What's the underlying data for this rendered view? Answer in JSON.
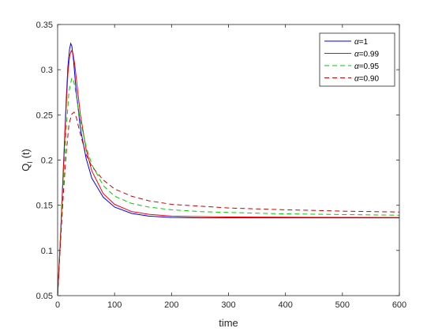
{
  "chart_data": {
    "type": "line",
    "xlabel": "time",
    "ylabel_main": "Q",
    "ylabel_sub": "I",
    "ylabel_tail": " (t)",
    "xlim": [
      0,
      600
    ],
    "ylim": [
      0.05,
      0.35
    ],
    "x_ticks": [
      0,
      100,
      200,
      300,
      400,
      500,
      600
    ],
    "y_ticks": [
      0.05,
      0.1,
      0.15,
      0.2,
      0.25,
      0.3,
      0.35
    ],
    "y_tick_labels": [
      "0.05",
      "0.1",
      "0.15",
      "0.2",
      "0.25",
      "0.3",
      "0.35"
    ],
    "grid": false,
    "legend_position": "top-right",
    "legend_symbol": "α",
    "series": [
      {
        "name": "=1",
        "color": "#0000ff",
        "dash": "solid",
        "x": [
          0,
          5,
          10,
          15,
          18,
          21,
          23,
          25,
          28,
          32,
          40,
          50,
          60,
          80,
          100,
          130,
          160,
          200,
          250,
          300,
          400,
          500,
          600
        ],
        "y": [
          0.05,
          0.115,
          0.19,
          0.265,
          0.303,
          0.323,
          0.329,
          0.326,
          0.31,
          0.28,
          0.235,
          0.202,
          0.18,
          0.159,
          0.148,
          0.141,
          0.138,
          0.1365,
          0.136,
          0.136,
          0.136,
          0.136,
          0.136
        ]
      },
      {
        "name": "=0.99",
        "color": "#ff0000",
        "dash": "solid",
        "x": [
          0,
          5,
          10,
          15,
          18,
          21,
          24,
          27,
          30,
          35,
          40,
          50,
          60,
          80,
          100,
          130,
          160,
          200,
          250,
          300,
          400,
          500,
          600
        ],
        "y": [
          0.05,
          0.114,
          0.186,
          0.258,
          0.295,
          0.315,
          0.321,
          0.318,
          0.306,
          0.278,
          0.25,
          0.212,
          0.188,
          0.163,
          0.151,
          0.143,
          0.14,
          0.138,
          0.1375,
          0.137,
          0.1368,
          0.1366,
          0.1365
        ]
      },
      {
        "name": "=0.95",
        "color": "#00cc00",
        "dash": "dash",
        "x": [
          0,
          5,
          10,
          15,
          20,
          25,
          28,
          32,
          36,
          40,
          50,
          60,
          80,
          100,
          130,
          160,
          200,
          250,
          300,
          400,
          500,
          600
        ],
        "y": [
          0.05,
          0.112,
          0.175,
          0.234,
          0.276,
          0.291,
          0.288,
          0.275,
          0.258,
          0.243,
          0.215,
          0.195,
          0.172,
          0.16,
          0.152,
          0.148,
          0.145,
          0.143,
          0.142,
          0.1405,
          0.1397,
          0.139
        ]
      },
      {
        "name": "=0.90",
        "color": "#cc0000",
        "dash": "dash",
        "x": [
          0,
          5,
          10,
          15,
          20,
          25,
          29,
          33,
          37,
          42,
          50,
          60,
          80,
          100,
          130,
          160,
          200,
          250,
          300,
          400,
          500,
          600
        ],
        "y": [
          0.05,
          0.108,
          0.162,
          0.207,
          0.24,
          0.251,
          0.253,
          0.247,
          0.236,
          0.224,
          0.206,
          0.193,
          0.178,
          0.168,
          0.16,
          0.155,
          0.151,
          0.149,
          0.147,
          0.145,
          0.1435,
          0.1425
        ]
      }
    ]
  }
}
